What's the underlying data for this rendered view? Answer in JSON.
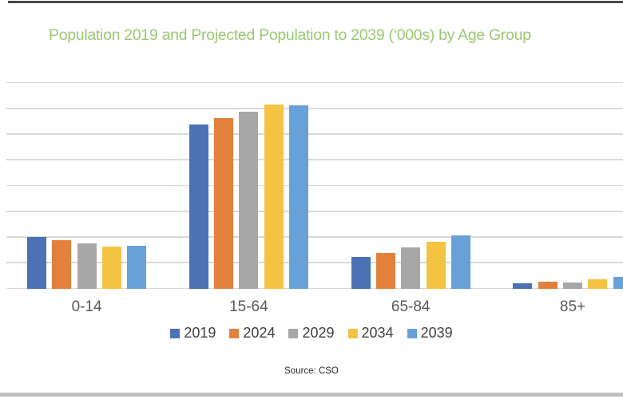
{
  "source": "Source: CSO",
  "colors": {
    "background": "#FFFFFF",
    "title": "#9AC873",
    "grid": "#D9D9D9",
    "axis_text": "#595959",
    "legend_text": "#404040",
    "source_text": "#262626",
    "top_rule": "#474747",
    "bottom_rule": "#BDBDBD"
  },
  "chart_data": {
    "type": "bar",
    "title": "Population 2019 and Projected Population to 2039 (‘000s) by Age Group",
    "categories": [
      "0-14",
      "15-64",
      "65-84",
      "85+"
    ],
    "series": [
      {
        "name": "2019",
        "color": "#4B72B5",
        "values": [
          1005,
          3190,
          615,
          100
        ]
      },
      {
        "name": "2024",
        "color": "#E2803C",
        "values": [
          935,
          3305,
          695,
          135
        ]
      },
      {
        "name": "2029",
        "color": "#A7A7A7",
        "values": [
          875,
          3435,
          800,
          120
        ]
      },
      {
        "name": "2034",
        "color": "#F5C342",
        "values": [
          820,
          3570,
          910,
          175
        ]
      },
      {
        "name": "2039",
        "color": "#68A0D8",
        "values": [
          830,
          3560,
          1030,
          225
        ]
      }
    ],
    "xlabel": "",
    "ylabel": "",
    "ylim": [
      0,
      4000
    ],
    "gridline_step": 500,
    "y_axis_labels_visible": false,
    "grid": true,
    "legend_position": "bottom"
  }
}
